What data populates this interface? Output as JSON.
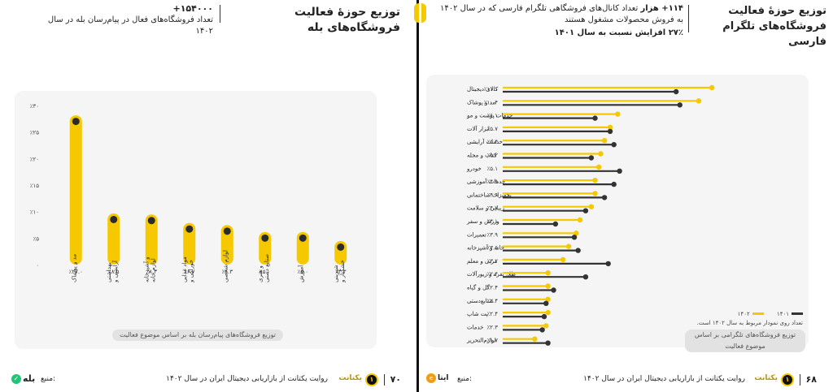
{
  "left": {
    "title": "توزیع حوزهٔ فعالیت فروشگاه‌های بله",
    "stat_value": "۱۵۴۰۰۰+",
    "stat_desc": "تعداد فروشگاه‌های فعال در پیام‌رسان بله در سال ۱۴۰۲",
    "caption": "توزیع فروشگاه‌های پیام‌رسان بله بر اساس موضوع فعالیت",
    "footer_text": "روایت یکتانت از بازاریابی دیجیتال ایران در سال ۱۴۰۲",
    "page_number": "۷۰",
    "source_label": "منبع:",
    "source_name": "بله",
    "brand": "یکتانت"
  },
  "right": {
    "title_line1": "توزیع حوزهٔ فعالیت",
    "title_line2": "فروشگاه‌های تلگرام فارسی",
    "sub_bold": "۱۱۴+ هزار",
    "sub_rest": "تعداد کانال‌های فروشگاهی تلگرام فارسی که در سال ۱۴۰۲ به فروش محصولات مشغول هستند",
    "growth": "۲۷٪ افزایش نسبت به سال ۱۴۰۱",
    "legend_1402": "۱۴۰۲",
    "legend_1401": "۱۴۰۱",
    "legend_note": "تعداد روی نمودار مربوط به سال ۱۴۰۲ است.",
    "caption": "توزیع فروشگاه‌های تلگرامی بر اساس موضوع فعالیت",
    "footer_text": "روایت یکتانت از بازاریابی دیجیتال ایران در سال ۱۴۰۲",
    "page_number": "۶۸",
    "source_label": "منبع:",
    "source_name": "ایتا",
    "brand": "یکتانت"
  },
  "chart_data": [
    {
      "type": "bar",
      "categories": [
        "مد و پوشاک",
        "آرایشی و بهداشتی",
        "لوازم خانه و آشپزخانه",
        "خوراکی و مواد غذایی",
        "لوازم شخصی",
        "صنایع دستی و هنری",
        "آموزش",
        "خشکبار و شیرینی"
      ],
      "values": [
        27.0,
        8.5,
        8.3,
        6.7,
        6.3,
        5.0,
        5.0,
        3.3
      ],
      "value_labels": [
        "٪۲۷.۰",
        "٪۸.۵",
        "٪۸.۳",
        "٪۶.۷",
        "٪۶.۳",
        "٪۵.۰",
        "٪۵.۰",
        "٪۳.۳"
      ],
      "yticks": [
        "٪۳۰",
        "٪۲۵",
        "٪۲۰",
        "٪۱۵",
        "٪۱۰",
        "٪۵",
        "۰"
      ],
      "ylim": [
        0,
        30
      ],
      "grid": false
    },
    {
      "type": "bar",
      "orientation": "horizontal",
      "categories": [
        "کالای دیجیتال",
        "مد و پوشاک",
        "خدمات پوست و مو",
        "ابزار آلات",
        "خدمات آرایشی",
        "کتاب و مجله",
        "خودرو",
        "خدمات آموزشی",
        "تجهیزات ساختمانی",
        "زیبایی و سلامت",
        "ورزش و سفر",
        "تعمیرات",
        "خانه و آشپزخانه",
        "مربی و معلم",
        "طلا، نقره و زیورآلات",
        "گل و گیاه",
        "صنایع‌دستی",
        "پت شاپ",
        "خدمات",
        "لوازم‌التحریر"
      ],
      "series": [
        {
          "name": "۱۴۰۲",
          "color": "#f5c800",
          "values": [
            11.1,
            10.4,
            6.1,
            5.7,
            5.4,
            5.2,
            5.1,
            4.9,
            4.9,
            4.7,
            4.1,
            3.9,
            3.5,
            3.2,
            2.4,
            2.4,
            2.4,
            2.4,
            2.3,
            1.7
          ]
        },
        {
          "name": "۱۴۰۱",
          "color": "#333333",
          "values": [
            9.2,
            9.4,
            4.9,
            5.7,
            5.9,
            4.7,
            6.2,
            5.9,
            5.4,
            4.4,
            2.8,
            3.8,
            4.0,
            5.6,
            4.4,
            2.7,
            2.3,
            2.2,
            2.1,
            2.4
          ]
        }
      ],
      "value_labels": [
        "٪۱۱.۱",
        "٪۱۰.۴",
        "٪۶.۱",
        "٪۵.۷",
        "٪۵.۴",
        "٪۵.۲",
        "٪۵.۱",
        "٪۴.۹",
        "٪۴.۹",
        "٪۴.۷",
        "٪۴.۱",
        "٪۳.۹",
        "٪۳.۵",
        "٪۳.۲",
        "٪۲.۴",
        "٪۲.۴",
        "٪۲.۴",
        "٪۲.۴",
        "٪۲.۳",
        "٪۱.۷"
      ],
      "xlim": [
        0,
        12
      ],
      "legend": "bottom-right"
    }
  ]
}
